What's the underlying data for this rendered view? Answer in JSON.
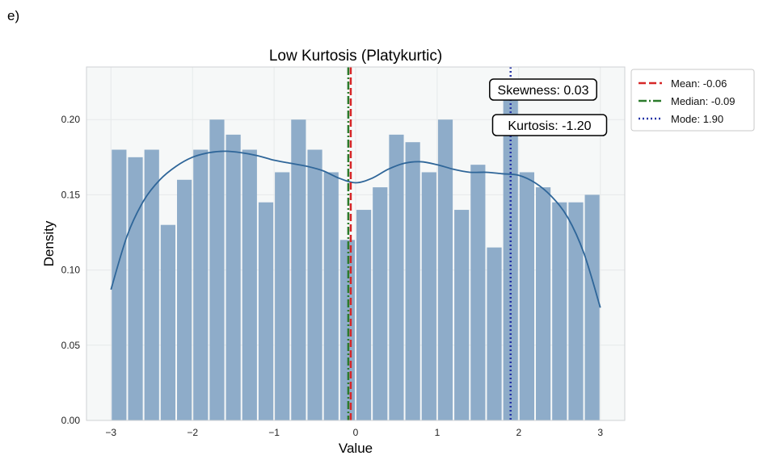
{
  "panel_label": "e)",
  "chart_data": {
    "type": "bar",
    "title": "Low Kurtosis (Platykurtic)",
    "xlabel": "Value",
    "ylabel": "Density",
    "xlim": [
      -3.3,
      3.3
    ],
    "ylim": [
      0,
      0.235
    ],
    "xticks": [
      -3,
      -2,
      -1,
      0,
      1,
      2,
      3
    ],
    "xtick_labels": [
      "−3",
      "−2",
      "−1",
      "0",
      "1",
      "2",
      "3"
    ],
    "yticks": [
      0.0,
      0.05,
      0.1,
      0.15,
      0.2
    ],
    "ytick_labels": [
      "0.00",
      "0.05",
      "0.10",
      "0.15",
      "0.20"
    ],
    "grid": true,
    "histogram": {
      "bin_start": -3.0,
      "bin_width": 0.2,
      "densities": [
        0.18,
        0.175,
        0.18,
        0.13,
        0.16,
        0.18,
        0.2,
        0.19,
        0.18,
        0.145,
        0.165,
        0.2,
        0.18,
        0.165,
        0.12,
        0.14,
        0.155,
        0.19,
        0.185,
        0.165,
        0.2,
        0.14,
        0.17,
        0.115,
        0.215,
        0.165,
        0.155,
        0.145,
        0.145,
        0.15
      ],
      "color": "#8eacc9"
    },
    "kde": {
      "color": "#2f6699",
      "x": [
        -3.0,
        -2.8,
        -2.6,
        -2.4,
        -2.2,
        -2.0,
        -1.8,
        -1.6,
        -1.4,
        -1.2,
        -1.0,
        -0.8,
        -0.6,
        -0.4,
        -0.2,
        0.0,
        0.2,
        0.4,
        0.6,
        0.8,
        1.0,
        1.2,
        1.4,
        1.6,
        1.8,
        2.0,
        2.2,
        2.4,
        2.6,
        2.8,
        3.0
      ],
      "y": [
        0.087,
        0.123,
        0.146,
        0.16,
        0.169,
        0.175,
        0.178,
        0.179,
        0.178,
        0.176,
        0.173,
        0.171,
        0.169,
        0.166,
        0.161,
        0.158,
        0.161,
        0.167,
        0.171,
        0.172,
        0.17,
        0.167,
        0.165,
        0.165,
        0.164,
        0.163,
        0.158,
        0.149,
        0.135,
        0.111,
        0.075
      ]
    },
    "vlines": [
      {
        "name": "Mean",
        "label": "Mean: -0.06",
        "x": -0.06,
        "color": "#d62728",
        "style": "dashed"
      },
      {
        "name": "Median",
        "label": "Median: -0.09",
        "x": -0.09,
        "color": "#2b7a2b",
        "style": "dashdot"
      },
      {
        "name": "Mode",
        "label": "Mode: 1.90",
        "x": 1.9,
        "color": "#2433a6",
        "style": "dotted"
      }
    ],
    "legend_position": "outside-top-right",
    "annotations": [
      {
        "name": "skewness",
        "text": "Skewness: 0.03"
      },
      {
        "name": "kurtosis",
        "text": "Kurtosis: -1.20"
      }
    ]
  }
}
